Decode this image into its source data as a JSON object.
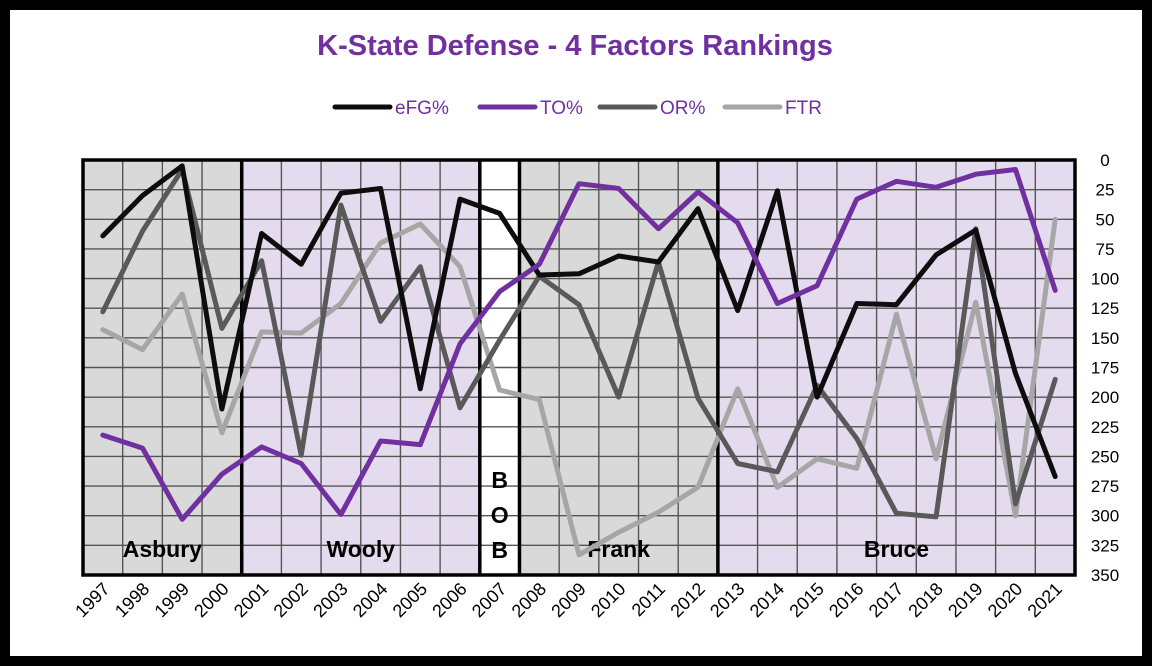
{
  "chart_data": {
    "type": "line",
    "title": "K-State Defense - 4 Factors Rankings",
    "x": [
      1997,
      1998,
      1999,
      2000,
      2001,
      2002,
      2003,
      2004,
      2005,
      2006,
      2007,
      2008,
      2009,
      2010,
      2011,
      2012,
      2013,
      2014,
      2015,
      2016,
      2017,
      2018,
      2019,
      2020,
      2021
    ],
    "x_tick_labels": [
      "1997",
      "1998",
      "1999",
      "2000",
      "2001",
      "2002",
      "2003",
      "2004",
      "2005",
      "2006",
      "2007",
      "2008",
      "2009",
      "2010",
      "2011",
      "2012",
      "2013",
      "2014",
      "2015",
      "2016",
      "2017",
      "2018",
      "2019",
      "2020",
      "2021"
    ],
    "ylim": [
      350,
      0
    ],
    "y_reversed": true,
    "y_ticks": [
      "0",
      "25",
      "50",
      "75",
      "100",
      "125",
      "150",
      "175",
      "200",
      "225",
      "250",
      "275",
      "300",
      "325",
      "350"
    ],
    "y_tick_values": [
      0,
      25,
      50,
      75,
      100,
      125,
      150,
      175,
      200,
      225,
      250,
      275,
      300,
      325,
      350
    ],
    "grid": true,
    "legend_position": "top",
    "series": [
      {
        "name": "eFG%",
        "color": "#0d0d0d",
        "values": [
          64,
          30,
          5,
          210,
          62,
          88,
          28,
          24,
          193,
          33,
          45,
          97,
          96,
          81,
          86,
          41,
          127,
          26,
          200,
          121,
          122,
          80,
          59,
          180,
          267
        ]
      },
      {
        "name": "TO%",
        "color": "#7030a0",
        "values": [
          232,
          243,
          303,
          265,
          242,
          256,
          299,
          237,
          240,
          155,
          111,
          88,
          20,
          24,
          58,
          27,
          53,
          121,
          106,
          33,
          18,
          23,
          12,
          8,
          110
        ]
      },
      {
        "name": "OR%",
        "color": "#595959",
        "values": [
          128,
          60,
          8,
          142,
          85,
          249,
          38,
          136,
          90,
          209,
          152,
          98,
          122,
          200,
          86,
          201,
          256,
          263,
          190,
          235,
          298,
          301,
          58,
          290,
          185
        ]
      },
      {
        "name": "FTR",
        "color": "#a6a6a6",
        "values": [
          143,
          160,
          113,
          230,
          145,
          146,
          121,
          70,
          54,
          90,
          194,
          202,
          333,
          314,
          297,
          276,
          193,
          276,
          252,
          260,
          130,
          252,
          120,
          300,
          50
        ]
      }
    ],
    "eras": [
      {
        "label": "Asbury",
        "start": 1997,
        "end": 2000,
        "shade": "#d9d9d9"
      },
      {
        "label": "Wooly",
        "start": 2001,
        "end": 2006,
        "shade": "#e4dcee"
      },
      {
        "label": "B\nO\nB",
        "lines": [
          "B",
          "O",
          "B"
        ],
        "start": 2007,
        "end": 2007,
        "shade": "#ffffff"
      },
      {
        "label": "Frank",
        "start": 2008,
        "end": 2012,
        "shade": "#d9d9d9"
      },
      {
        "label": "Bruce",
        "start": 2013,
        "end": 2021,
        "shade": "#e4dcee"
      }
    ],
    "title_color": "#7030a0",
    "legend_text_color": "#7030a0"
  }
}
